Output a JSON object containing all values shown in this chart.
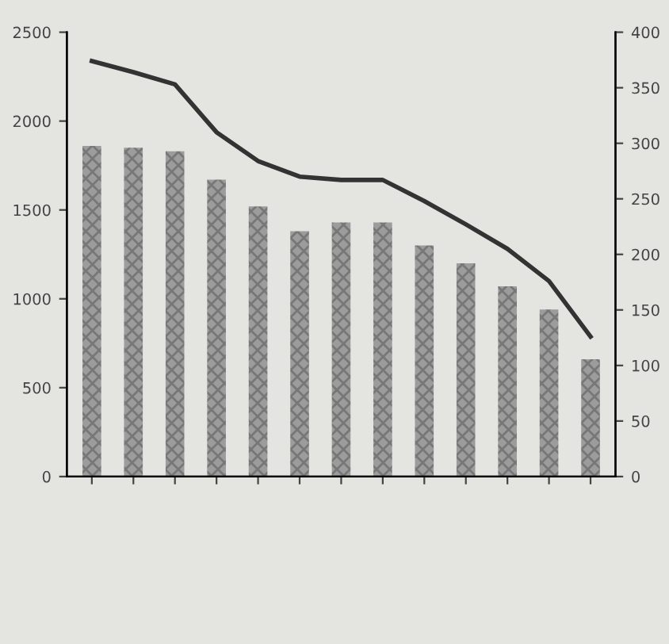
{
  "chart_data": {
    "type": "bar",
    "categories": [
      null,
      null,
      null,
      null,
      null,
      null,
      null,
      null,
      null,
      null,
      null,
      null,
      null
    ],
    "series": [
      {
        "color": "#9c9c9c",
        "values": [
          1860,
          1850,
          1830,
          1670,
          1520,
          1380,
          1430,
          1430,
          1300,
          1200,
          1070,
          940,
          660
        ]
      },
      {
        "type": "line",
        "axis": "y2",
        "color": "#333333",
        "values": [
          374,
          364,
          353,
          310,
          284,
          270,
          267,
          267,
          248,
          227,
          205,
          176,
          126
        ]
      }
    ],
    "ylim": [
      0,
      2500
    ],
    "yticks": [
      0,
      500,
      1000,
      1500,
      2000,
      2500
    ],
    "y2lim": [
      0,
      400
    ],
    "y2ticks": [
      0,
      50,
      100,
      150,
      200,
      250,
      300,
      350,
      400
    ],
    "grid": false,
    "marker": "none",
    "line_style": "solid"
  }
}
